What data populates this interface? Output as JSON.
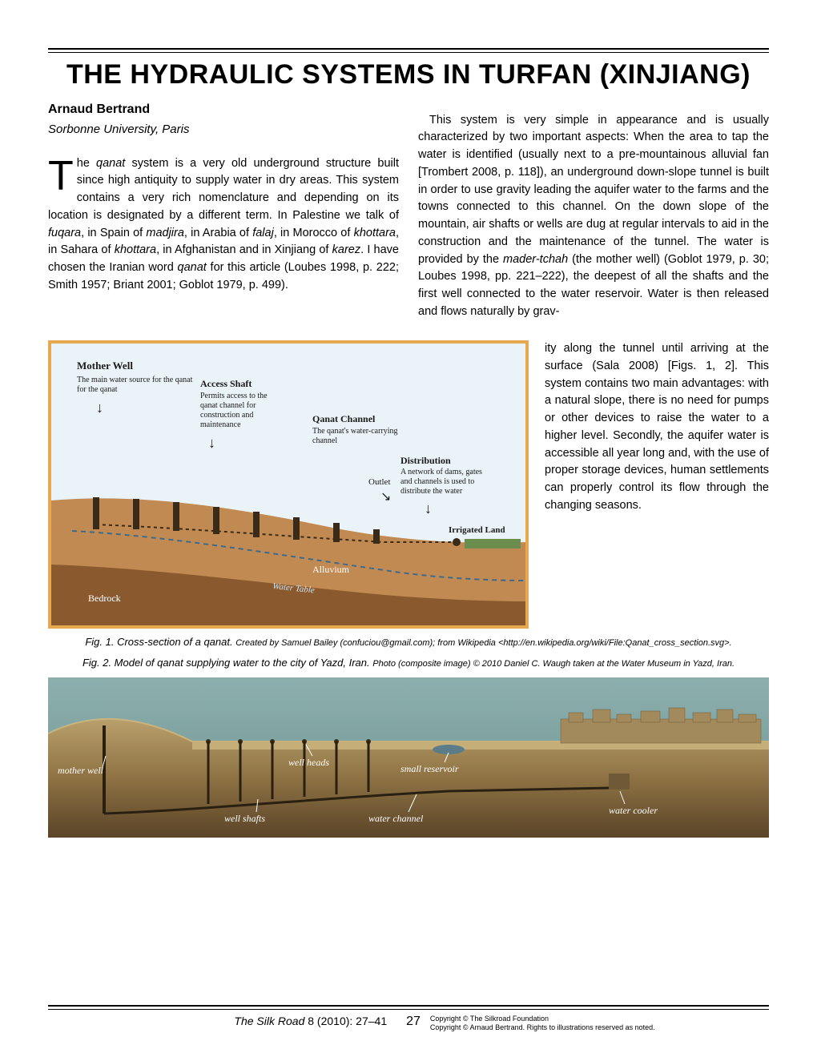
{
  "title": "THE HYDRAULIC SYSTEMS IN TURFAN (XINJIANG)",
  "author": "Arnaud Bertrand",
  "affiliation": "Sorbonne University, Paris",
  "para_left": "he <em class=\"term\">qanat</em> system is a very old underground structure built since high antiquity to supply water in dry areas. This system contains a very rich nomenclature and depending on its location is designated by a different term. In Palestine we talk of <em class=\"term\">fuqara</em>, in Spain of <em class=\"term\">madjira</em>, in Arabia of <em class=\"term\">falaj</em>, in Morocco of <em class=\"term\">khottara</em>, in Sahara of <em class=\"term\">khottara</em>, in Afghanistan and in Xinjiang of <em class=\"term\">karez</em>. I have chosen the Iranian word <em class=\"term\">qanat</em> for this article (Loubes 1998, p. 222; Smith 1957; Briant 2001; Goblot 1979, p. 499).",
  "para_right": "This system is very simple in appearance and is usually characterized by two important aspects: When the area to tap the water is identified (usually next to a pre-mountainous alluvial fan [Trombert 2008, p. 118]), an underground down-slope tunnel is built in order to use gravity leading the aquifer water to the farms and the towns connected to this channel. On the down slope of the mountain, air shafts or wells are dug at regular intervals to aid in the construction and the maintenance of the tunnel. The water is provided by the <em class=\"term\">mader-tchah</em> (the mother well) (Goblot 1979, p. 30; Loubes 1998, pp. 221–222), the deepest of all the shafts and the first well connected to the water reservoir. Water is then released and flows naturally by grav-",
  "para_side": "ity along the tunnel until arriving at the surface (Sala 2008) [Figs. 1, 2]. This system contains two main advantages: with a natural slope, there is no need for pumps or other devices to raise the water to a higher level. Secondly, the aquifer water is accessible all year long and, with the use of proper storage devices, human settlements can properly control its flow through the changing seasons.",
  "fig1": {
    "caption_main": "Fig. 1. Cross-section of a qanat.",
    "caption_sub": "Created by Samuel Bailey (confuciou@gmail.com); from Wikipedia &lt;http://en.wikipedia.org/wiki/File:Qanat_cross_section.svg&gt;.",
    "labels": {
      "mother_well": "Mother Well",
      "mother_well_sub": "The main water source for the qanat",
      "access_shaft": "Access Shaft",
      "access_shaft_sub": "Permits access to the qanat channel for construction and maintenance",
      "qanat_channel": "Qanat Channel",
      "qanat_channel_sub": "The qanat's water-carrying channel",
      "distribution": "Distribution",
      "distribution_sub": "A network of dams, gates and channels is used to distribute the water",
      "outlet": "Outlet",
      "irrigated": "Irrigated Land",
      "alluvium": "Alluvium",
      "bedrock": "Bedrock",
      "water_table": "Water Table"
    },
    "colors": {
      "sky": "#eaf3f8",
      "alluvium": "#c18a52",
      "bedrock": "#8a5a2e",
      "water": "#9fc7e0",
      "shaft": "#3a2a18",
      "text": "#1a1a1a",
      "border": "#e6a94f",
      "dash": "#7a5230"
    }
  },
  "fig2": {
    "caption_main": "Fig. 2. Model of qanat supplying water to the city of Yazd, Iran.",
    "caption_sub": "Photo (composite image) © 2010 Daniel C. Waugh taken at the Water Museum in Yazd, Iran.",
    "labels": {
      "mother_well": "mother well",
      "well_heads": "well heads",
      "well_shafts": "well shafts",
      "small_reservoir": "small reservoir",
      "water_channel": "water channel",
      "water_cooler": "water cooler"
    },
    "colors": {
      "sky": "#7aa0a1",
      "ground_top": "#b9a06b",
      "ground_mid": "#8e7244",
      "ground_low": "#5a4428",
      "city": "#a38a5d",
      "label": "#ffffff",
      "shadow": "#2a2012"
    }
  },
  "footer": {
    "journal": "The Silk Road",
    "issue": "8 (2010): 27–41",
    "page_number": "27",
    "copyright1": "Copyright © The Silkroad Foundation",
    "copyright2": "Copyright © Arnaud Bertrand. Rights to illustrations reserved as noted."
  }
}
